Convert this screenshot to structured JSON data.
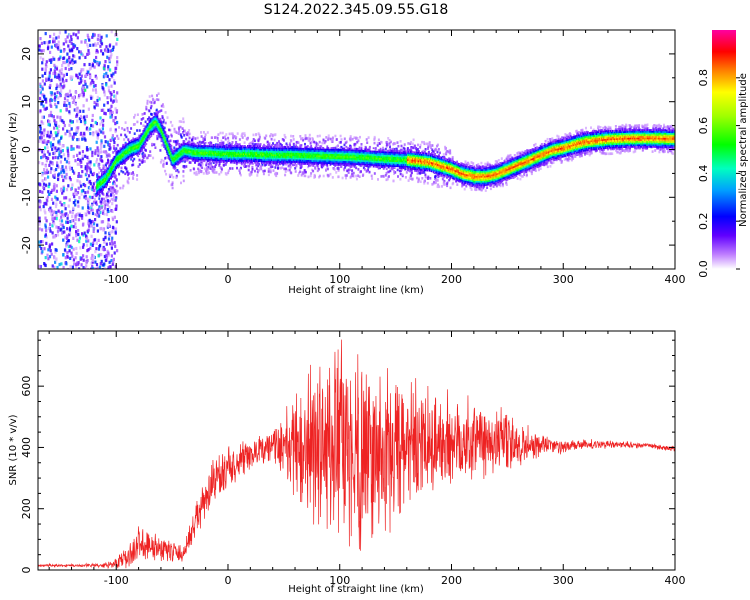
{
  "title": "S124.2022.345.09.55.G18",
  "chart_data": [
    {
      "type": "heatmap",
      "xlabel": "Height of straight line (km)",
      "ylabel": "Frequency (Hz)",
      "xlim": [
        -170,
        400
      ],
      "ylim": [
        -25,
        25
      ],
      "xticks": [
        -100,
        0,
        100,
        200,
        300,
        400
      ],
      "yticks": [
        -20,
        -10,
        0,
        10,
        20
      ],
      "colorbar": {
        "label": "Normalized spectral amplitude",
        "range": [
          0,
          1
        ],
        "ticks": [
          "0.0",
          "0.2",
          "0.4",
          "0.6",
          "0.8"
        ],
        "tick_values": [
          0.0,
          0.2,
          0.4,
          0.6,
          0.8
        ]
      },
      "ridge": {
        "x": [
          -120,
          -110,
          -100,
          -90,
          -80,
          -75,
          -70,
          -65,
          -60,
          -55,
          -50,
          -45,
          -40,
          -30,
          -20,
          0,
          20,
          40,
          60,
          80,
          100,
          120,
          140,
          160,
          180,
          200,
          210,
          220,
          230,
          240,
          250,
          260,
          270,
          280,
          290,
          300,
          310,
          320,
          340,
          360,
          380,
          400
        ],
        "y": [
          -8,
          -6,
          -2,
          0,
          1,
          3,
          5,
          6,
          4,
          1,
          -2,
          -1,
          0,
          -0.5,
          -0.5,
          -0.8,
          -0.8,
          -1,
          -1,
          -1.2,
          -1.3,
          -1.5,
          -1.8,
          -2,
          -2.5,
          -4,
          -5,
          -5.5,
          -5.5,
          -5,
          -4,
          -3,
          -2,
          -1,
          0,
          0.5,
          1.2,
          1.8,
          2.3,
          2.5,
          2.5,
          2.4
        ]
      },
      "noise_region_x": [
        -170,
        -110
      ]
    },
    {
      "type": "line",
      "xlabel": "Height of straight line (km)",
      "ylabel": "SNR (10 * v/v)",
      "xlim": [
        -170,
        400
      ],
      "ylim": [
        0,
        780
      ],
      "xticks": [
        -100,
        0,
        100,
        200,
        300,
        400
      ],
      "yticks": [
        0,
        200,
        400,
        600
      ],
      "color": "#ee2222",
      "envelope": {
        "x": [
          -170,
          -140,
          -110,
          -90,
          -80,
          -60,
          -40,
          -30,
          -20,
          -10,
          0,
          20,
          40,
          60,
          80,
          100,
          120,
          140,
          160,
          180,
          200,
          220,
          240,
          260,
          280,
          300,
          320,
          350,
          380,
          400
        ],
        "mean": [
          15,
          15,
          15,
          35,
          90,
          70,
          50,
          150,
          230,
          300,
          330,
          370,
          410,
          400,
          410,
          400,
          390,
          380,
          390,
          410,
          420,
          430,
          420,
          410,
          410,
          400,
          410,
          410,
          405,
          395
        ],
        "spread": [
          5,
          5,
          8,
          40,
          70,
          50,
          30,
          60,
          90,
          90,
          80,
          60,
          60,
          200,
          340,
          380,
          380,
          330,
          260,
          210,
          190,
          170,
          140,
          90,
          50,
          25,
          20,
          12,
          10,
          10
        ]
      }
    }
  ]
}
